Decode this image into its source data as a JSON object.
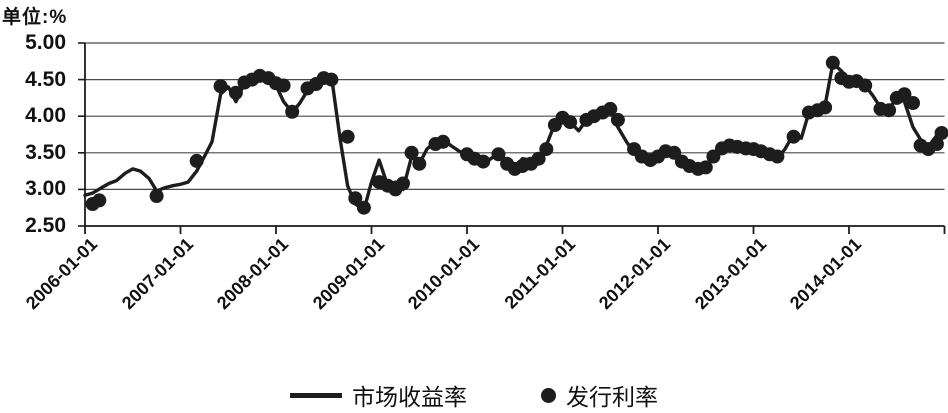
{
  "unit_label": "单位:%",
  "legend": {
    "line_label": "市场收益率",
    "dot_label": "发行利率"
  },
  "colors": {
    "series": "#1d1d1d",
    "grid": "#4a4a4a",
    "axis": "#1d1d1d",
    "background": "#ffffff",
    "text": "#111111"
  },
  "chart_data": {
    "type": "line",
    "title": "",
    "xlabel": "",
    "ylabel": "单位:%",
    "ylim": [
      2.5,
      5.0
    ],
    "x_range": [
      2006,
      2015
    ],
    "grid": "horizontal",
    "legend_position": "bottom-center",
    "y_ticks": [
      {
        "label": "5.00",
        "value": 5.0
      },
      {
        "label": "4.50",
        "value": 4.5
      },
      {
        "label": "4.00",
        "value": 4.0
      },
      {
        "label": "3.50",
        "value": 3.5
      },
      {
        "label": "3.00",
        "value": 3.0
      },
      {
        "label": "2.50",
        "value": 2.5
      }
    ],
    "x_tick_labels": [
      "2006-01-01",
      "2007-01-01",
      "2008-01-01",
      "2009-01-01",
      "2010-01-01",
      "2011-01-01",
      "2012-01-01",
      "2013-01-01",
      "2014-01-01"
    ],
    "series": [
      {
        "name": "市场收益率",
        "type": "line",
        "points": [
          [
            2006.0,
            2.92
          ],
          [
            2006.08,
            2.95
          ],
          [
            2006.17,
            3.02
          ],
          [
            2006.25,
            3.08
          ],
          [
            2006.33,
            3.12
          ],
          [
            2006.42,
            3.22
          ],
          [
            2006.5,
            3.28
          ],
          [
            2006.58,
            3.25
          ],
          [
            2006.67,
            3.15
          ],
          [
            2006.75,
            2.98
          ],
          [
            2006.83,
            3.02
          ],
          [
            2006.92,
            3.05
          ],
          [
            2007.0,
            3.07
          ],
          [
            2007.08,
            3.1
          ],
          [
            2007.17,
            3.25
          ],
          [
            2007.25,
            3.45
          ],
          [
            2007.33,
            3.65
          ],
          [
            2007.42,
            4.3
          ],
          [
            2007.5,
            4.4
          ],
          [
            2007.58,
            4.2
          ],
          [
            2007.67,
            4.45
          ],
          [
            2007.75,
            4.52
          ],
          [
            2007.83,
            4.5
          ],
          [
            2007.92,
            4.48
          ],
          [
            2008.0,
            4.42
          ],
          [
            2008.08,
            4.2
          ],
          [
            2008.17,
            4.05
          ],
          [
            2008.25,
            4.18
          ],
          [
            2008.33,
            4.35
          ],
          [
            2008.42,
            4.42
          ],
          [
            2008.5,
            4.5
          ],
          [
            2008.58,
            4.55
          ],
          [
            2008.67,
            3.7
          ],
          [
            2008.75,
            3.05
          ],
          [
            2008.83,
            2.8
          ],
          [
            2008.92,
            2.72
          ],
          [
            2009.0,
            3.1
          ],
          [
            2009.08,
            3.4
          ],
          [
            2009.17,
            3.05
          ],
          [
            2009.25,
            3.1
          ],
          [
            2009.33,
            3.0
          ],
          [
            2009.42,
            3.45
          ],
          [
            2009.5,
            3.35
          ],
          [
            2009.58,
            3.55
          ],
          [
            2009.67,
            3.65
          ],
          [
            2009.75,
            3.68
          ],
          [
            2009.83,
            3.6
          ],
          [
            2009.92,
            3.52
          ],
          [
            2010.0,
            3.48
          ],
          [
            2010.08,
            3.42
          ],
          [
            2010.17,
            3.35
          ],
          [
            2010.25,
            3.42
          ],
          [
            2010.33,
            3.5
          ],
          [
            2010.42,
            3.38
          ],
          [
            2010.5,
            3.3
          ],
          [
            2010.58,
            3.42
          ],
          [
            2010.67,
            3.4
          ],
          [
            2010.75,
            3.42
          ],
          [
            2010.83,
            3.6
          ],
          [
            2010.92,
            3.9
          ],
          [
            2011.0,
            4.0
          ],
          [
            2011.08,
            3.92
          ],
          [
            2011.17,
            3.8
          ],
          [
            2011.25,
            3.95
          ],
          [
            2011.33,
            4.02
          ],
          [
            2011.42,
            4.05
          ],
          [
            2011.5,
            4.08
          ],
          [
            2011.58,
            3.85
          ],
          [
            2011.67,
            3.65
          ],
          [
            2011.75,
            3.5
          ],
          [
            2011.83,
            3.42
          ],
          [
            2011.92,
            3.45
          ],
          [
            2012.0,
            3.48
          ],
          [
            2012.08,
            3.55
          ],
          [
            2012.17,
            3.5
          ],
          [
            2012.25,
            3.38
          ],
          [
            2012.33,
            3.3
          ],
          [
            2012.42,
            3.26
          ],
          [
            2012.5,
            3.3
          ],
          [
            2012.58,
            3.45
          ],
          [
            2012.67,
            3.58
          ],
          [
            2012.75,
            3.62
          ],
          [
            2012.83,
            3.58
          ],
          [
            2012.92,
            3.56
          ],
          [
            2013.0,
            3.54
          ],
          [
            2013.08,
            3.48
          ],
          [
            2013.17,
            3.45
          ],
          [
            2013.25,
            3.42
          ],
          [
            2013.33,
            3.55
          ],
          [
            2013.42,
            3.76
          ],
          [
            2013.5,
            3.7
          ],
          [
            2013.58,
            4.05
          ],
          [
            2013.67,
            4.1
          ],
          [
            2013.75,
            4.15
          ],
          [
            2013.83,
            4.72
          ],
          [
            2013.92,
            4.62
          ],
          [
            2014.0,
            4.48
          ],
          [
            2014.08,
            4.46
          ],
          [
            2014.17,
            4.42
          ],
          [
            2014.25,
            4.28
          ],
          [
            2014.33,
            4.12
          ],
          [
            2014.42,
            4.1
          ],
          [
            2014.5,
            4.25
          ],
          [
            2014.58,
            4.2
          ],
          [
            2014.67,
            3.85
          ],
          [
            2014.75,
            3.68
          ],
          [
            2014.83,
            3.58
          ],
          [
            2014.92,
            3.74
          ],
          [
            2014.97,
            3.77
          ]
        ]
      },
      {
        "name": "发行利率",
        "type": "scatter",
        "points": [
          [
            2006.08,
            2.8
          ],
          [
            2006.15,
            2.85
          ],
          [
            2006.75,
            2.91
          ],
          [
            2007.17,
            3.39
          ],
          [
            2007.42,
            4.41
          ],
          [
            2007.58,
            4.32
          ],
          [
            2007.67,
            4.46
          ],
          [
            2007.75,
            4.5
          ],
          [
            2007.83,
            4.55
          ],
          [
            2007.92,
            4.52
          ],
          [
            2008.0,
            4.45
          ],
          [
            2008.08,
            4.42
          ],
          [
            2008.17,
            4.06
          ],
          [
            2008.33,
            4.38
          ],
          [
            2008.42,
            4.44
          ],
          [
            2008.5,
            4.52
          ],
          [
            2008.58,
            4.5
          ],
          [
            2008.75,
            3.72
          ],
          [
            2008.83,
            2.88
          ],
          [
            2008.92,
            2.75
          ],
          [
            2009.08,
            3.1
          ],
          [
            2009.17,
            3.05
          ],
          [
            2009.25,
            3.0
          ],
          [
            2009.33,
            3.08
          ],
          [
            2009.42,
            3.5
          ],
          [
            2009.5,
            3.35
          ],
          [
            2009.67,
            3.62
          ],
          [
            2009.75,
            3.65
          ],
          [
            2010.0,
            3.48
          ],
          [
            2010.08,
            3.42
          ],
          [
            2010.17,
            3.38
          ],
          [
            2010.33,
            3.48
          ],
          [
            2010.42,
            3.35
          ],
          [
            2010.5,
            3.28
          ],
          [
            2010.58,
            3.32
          ],
          [
            2010.67,
            3.35
          ],
          [
            2010.75,
            3.42
          ],
          [
            2010.83,
            3.55
          ],
          [
            2010.92,
            3.88
          ],
          [
            2011.0,
            3.98
          ],
          [
            2011.08,
            3.92
          ],
          [
            2011.25,
            3.95
          ],
          [
            2011.33,
            4.0
          ],
          [
            2011.42,
            4.05
          ],
          [
            2011.5,
            4.1
          ],
          [
            2011.58,
            3.95
          ],
          [
            2011.75,
            3.55
          ],
          [
            2011.83,
            3.45
          ],
          [
            2011.92,
            3.4
          ],
          [
            2012.0,
            3.45
          ],
          [
            2012.08,
            3.52
          ],
          [
            2012.17,
            3.5
          ],
          [
            2012.25,
            3.38
          ],
          [
            2012.33,
            3.32
          ],
          [
            2012.42,
            3.28
          ],
          [
            2012.5,
            3.3
          ],
          [
            2012.58,
            3.45
          ],
          [
            2012.67,
            3.56
          ],
          [
            2012.75,
            3.6
          ],
          [
            2012.83,
            3.58
          ],
          [
            2012.92,
            3.56
          ],
          [
            2013.0,
            3.55
          ],
          [
            2013.08,
            3.52
          ],
          [
            2013.17,
            3.48
          ],
          [
            2013.25,
            3.45
          ],
          [
            2013.42,
            3.72
          ],
          [
            2013.58,
            4.05
          ],
          [
            2013.67,
            4.08
          ],
          [
            2013.75,
            4.12
          ],
          [
            2013.83,
            4.73
          ],
          [
            2013.92,
            4.52
          ],
          [
            2014.0,
            4.47
          ],
          [
            2014.08,
            4.48
          ],
          [
            2014.17,
            4.42
          ],
          [
            2014.33,
            4.1
          ],
          [
            2014.42,
            4.08
          ],
          [
            2014.5,
            4.25
          ],
          [
            2014.58,
            4.3
          ],
          [
            2014.67,
            4.18
          ],
          [
            2014.75,
            3.6
          ],
          [
            2014.83,
            3.55
          ],
          [
            2014.92,
            3.62
          ],
          [
            2014.97,
            3.77
          ]
        ]
      }
    ]
  }
}
